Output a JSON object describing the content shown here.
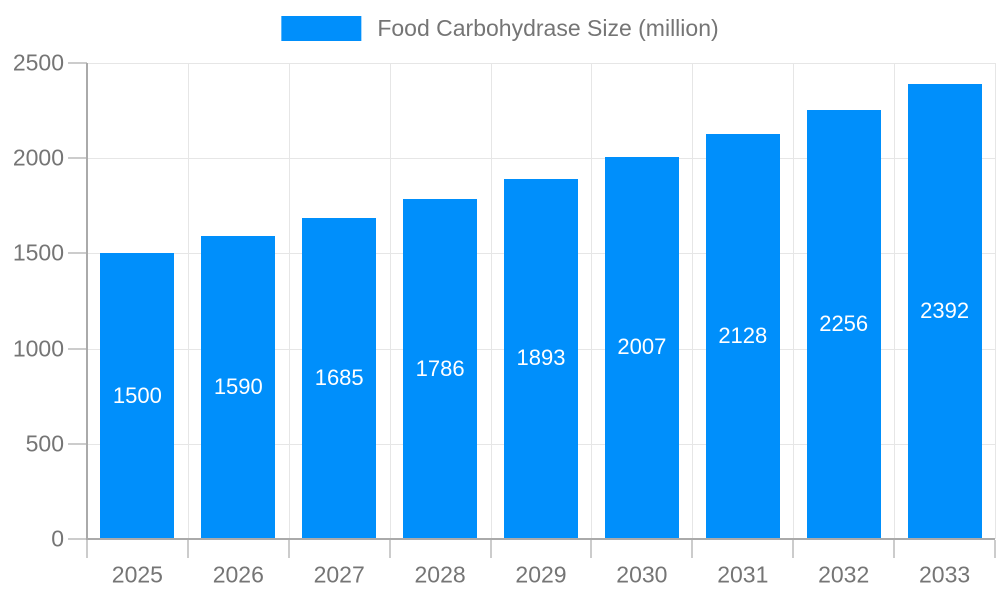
{
  "chart_data": {
    "type": "bar",
    "title": "Food Carbohydrase Size (million)",
    "categories": [
      "2025",
      "2026",
      "2027",
      "2028",
      "2029",
      "2030",
      "2031",
      "2032",
      "2033"
    ],
    "values": [
      1500,
      1590,
      1685,
      1786,
      1893,
      2007,
      2128,
      2256,
      2392
    ],
    "xlabel": "",
    "ylabel": "",
    "ylim": [
      0,
      2500
    ],
    "y_ticks": [
      0,
      500,
      1000,
      1500,
      2000,
      2500
    ],
    "grid": true,
    "legend_position": "top",
    "bar_color": "#008FFB",
    "label_color": "#ffffff",
    "axis_text_color": "#757575",
    "gridline_color": "#e6e6e6",
    "tick_color": "#cccccc",
    "axis_line_color": "#aaaaaa"
  }
}
